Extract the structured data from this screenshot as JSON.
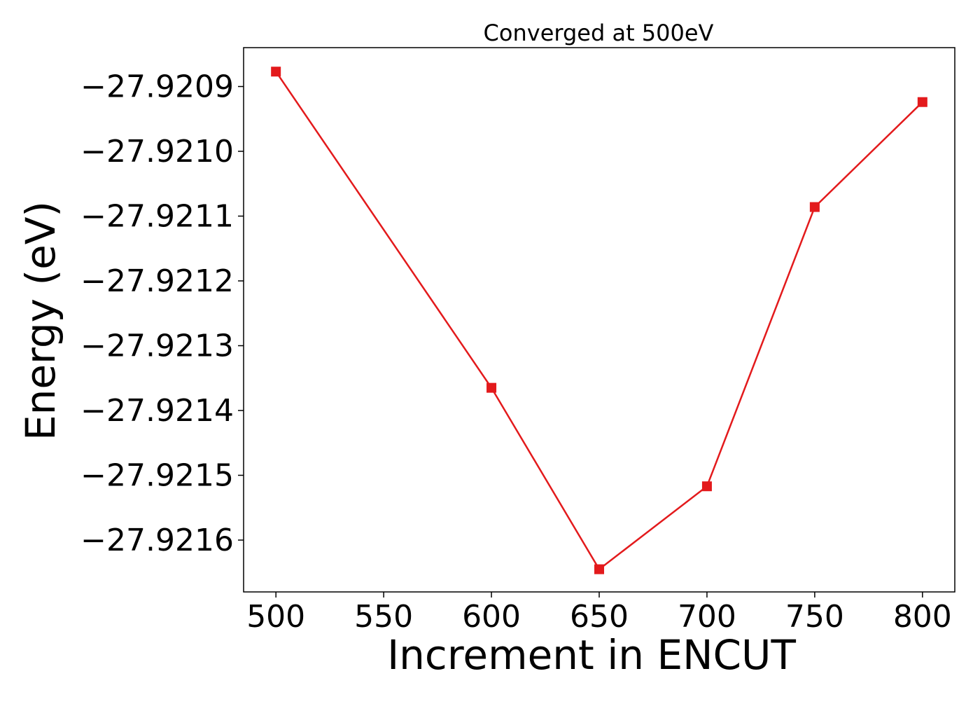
{
  "chart_data": {
    "type": "line",
    "title": "Converged at 500eV",
    "xlabel": "Increment in ENCUT",
    "ylabel": "Energy (eV)",
    "xlim": [
      485,
      815
    ],
    "ylim": [
      -27.92168,
      -27.92084
    ],
    "xticks": [
      500,
      550,
      600,
      650,
      700,
      750,
      800
    ],
    "xtick_labels": [
      "500",
      "550",
      "600",
      "650",
      "700",
      "750",
      "800"
    ],
    "yticks": [
      -27.9209,
      -27.921,
      -27.9211,
      -27.9212,
      -27.9213,
      -27.9214,
      -27.9215,
      -27.9216
    ],
    "ytick_labels": [
      "−27.9209",
      "−27.9210",
      "−27.9211",
      "−27.9212",
      "−27.9213",
      "−27.9214",
      "−27.9215",
      "−27.9216"
    ],
    "grid": false,
    "series": [
      {
        "color": "#e31a1c",
        "marker": "square",
        "x": [
          500,
          600,
          650,
          700,
          750,
          800
        ],
        "y": [
          -27.920877,
          -27.921365,
          -27.921645,
          -27.921517,
          -27.921086,
          -27.920924
        ]
      }
    ]
  }
}
